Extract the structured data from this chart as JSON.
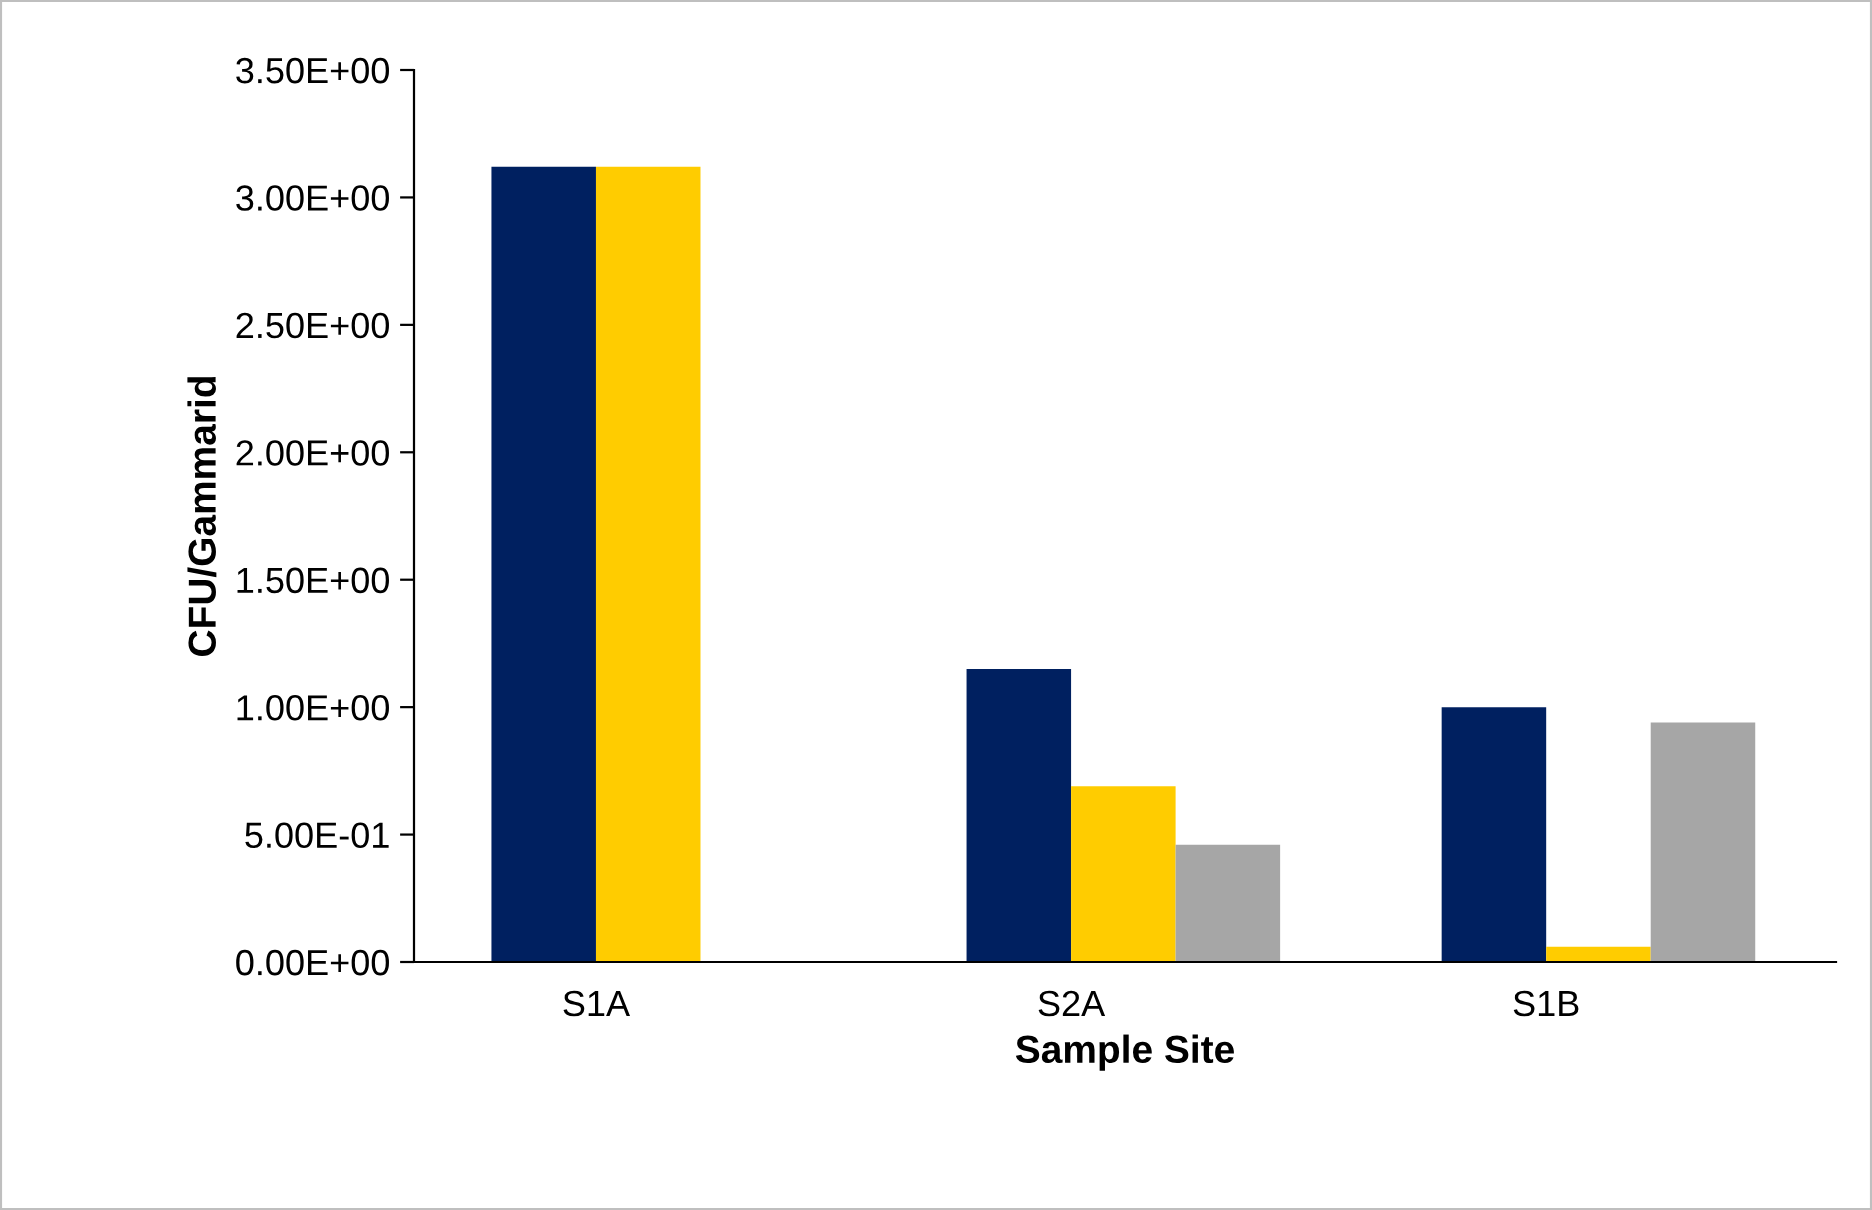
{
  "chart_data": {
    "type": "bar",
    "xlabel": "Sample Site",
    "ylabel": "CFU/Gammarid",
    "categories": [
      "S1A",
      "S2A",
      "S1B"
    ],
    "series": [
      {
        "color": "#002060",
        "values": [
          3.12,
          1.15,
          1.0
        ]
      },
      {
        "color": "#ffcc00",
        "values": [
          3.12,
          0.69,
          0.06
        ]
      },
      {
        "color": "#a6a6a6",
        "values": [
          null,
          0.46,
          0.94
        ]
      }
    ],
    "ylim": [
      0,
      3.5
    ],
    "yticks": [
      {
        "value": 0,
        "label": "0.00E+00"
      },
      {
        "value": 0.5,
        "label": "5.00E-01"
      },
      {
        "value": 1.0,
        "label": "1.00E+00"
      },
      {
        "value": 1.5,
        "label": "1.50E+00"
      },
      {
        "value": 2.0,
        "label": "2.00E+00"
      },
      {
        "value": 2.5,
        "label": "2.50E+00"
      },
      {
        "value": 3.0,
        "label": "3.00E+00"
      },
      {
        "value": 3.5,
        "label": "3.50E+00"
      }
    ],
    "grid": false
  }
}
